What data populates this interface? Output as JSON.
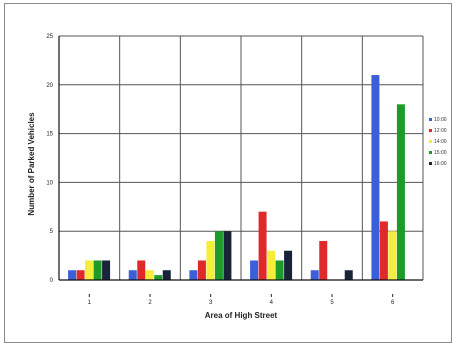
{
  "chart_data": {
    "type": "bar",
    "xlabel": "Area of High Street",
    "ylabel": "Number of Parked Vehicles",
    "ylim": [
      0,
      25
    ],
    "yticks": [
      0,
      5,
      10,
      15,
      20,
      25
    ],
    "grid": true,
    "legend_position": "right",
    "categories": [
      "1",
      "2",
      "3",
      "4",
      "5",
      "6"
    ],
    "series": [
      {
        "name": "10:00",
        "color": "#3a5fd8",
        "values": [
          1,
          1,
          1,
          2,
          1,
          21
        ]
      },
      {
        "name": "12:00",
        "color": "#e02a2a",
        "values": [
          1,
          2,
          2,
          7,
          4,
          6
        ]
      },
      {
        "name": "14:00",
        "color": "#f4ee3a",
        "values": [
          2,
          1,
          4,
          3,
          0,
          5
        ]
      },
      {
        "name": "15:00",
        "color": "#1e9a2a",
        "values": [
          2,
          0.5,
          5,
          2,
          0,
          18
        ]
      },
      {
        "name": "16:00",
        "color": "#1a2438",
        "values": [
          2,
          1,
          5,
          3,
          1,
          0
        ]
      }
    ]
  }
}
